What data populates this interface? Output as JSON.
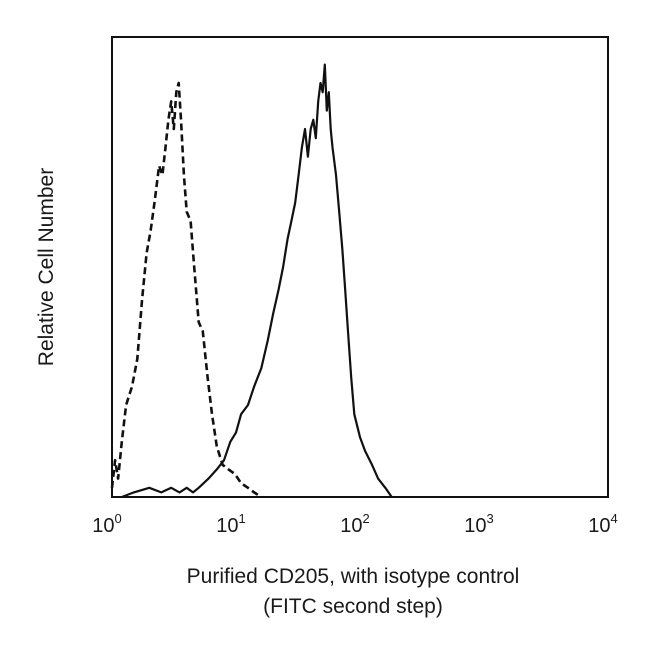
{
  "chart_data": {
    "type": "line",
    "title": "",
    "xlabel": [
      "Purified CD205, with isotype control",
      "(FITC second step)"
    ],
    "ylabel": "Relative Cell Number",
    "xscale": "log",
    "xlim": [
      1,
      10000
    ],
    "ylim": [
      0,
      100
    ],
    "grid": false,
    "legend": "none",
    "x_ticks": [
      {
        "value": 1,
        "base": "10",
        "exp": "0"
      },
      {
        "value": 10,
        "base": "10",
        "exp": "1"
      },
      {
        "value": 100,
        "base": "10",
        "exp": "2"
      },
      {
        "value": 1000,
        "base": "10",
        "exp": "3"
      },
      {
        "value": 10000,
        "base": "10",
        "exp": "4"
      }
    ],
    "series": [
      {
        "style": "dashed",
        "color": "#111111",
        "x": [
          1.0,
          1.06,
          1.12,
          1.2,
          1.3,
          1.45,
          1.6,
          1.75,
          1.9,
          2.05,
          2.2,
          2.4,
          2.55,
          2.7,
          2.85,
          3.0,
          3.15,
          3.3,
          3.45,
          3.6,
          3.8,
          4.0,
          4.3,
          4.6,
          5.0,
          5.4,
          5.9,
          6.4,
          7.0,
          7.8,
          8.7,
          9.8,
          11.0,
          12.5,
          14.0,
          16.0
        ],
        "y": [
          2,
          8,
          4,
          12,
          20,
          24,
          30,
          43,
          53,
          58,
          64,
          72,
          70,
          76,
          82,
          86,
          80,
          88,
          90,
          82,
          70,
          62,
          60,
          50,
          38,
          36,
          26,
          18,
          11,
          7,
          6,
          5,
          3,
          2,
          1,
          0
        ]
      },
      {
        "style": "solid",
        "color": "#111111",
        "x": [
          1.2,
          1.5,
          2.0,
          2.5,
          3.0,
          3.5,
          4.0,
          4.5,
          5.0,
          6.0,
          7.0,
          8.0,
          9.0,
          10.0,
          11.0,
          12.5,
          14.0,
          16.0,
          18.0,
          20.0,
          22.0,
          24.0,
          26.0,
          28.0,
          30.0,
          32.0,
          34.0,
          36.0,
          38.0,
          40.0,
          42.0,
          44.0,
          46.0,
          48.0,
          50.0,
          52.0,
          54.0,
          56.0,
          58.0,
          60.0,
          64.0,
          68.0,
          72.0,
          76.0,
          80.0,
          85.0,
          90.0,
          100.0,
          110.0,
          125.0,
          140.0,
          160.0,
          180.0
        ],
        "y": [
          0,
          1,
          2,
          1,
          2,
          1,
          2,
          1,
          2,
          4,
          6,
          8,
          12,
          14,
          18,
          20,
          24,
          28,
          34,
          40,
          45,
          50,
          56,
          60,
          64,
          70,
          76,
          80,
          74,
          80,
          82,
          78,
          86,
          90,
          88,
          94,
          84,
          88,
          80,
          76,
          70,
          62,
          54,
          45,
          36,
          26,
          18,
          13,
          10,
          7,
          4,
          2,
          0
        ]
      }
    ]
  }
}
